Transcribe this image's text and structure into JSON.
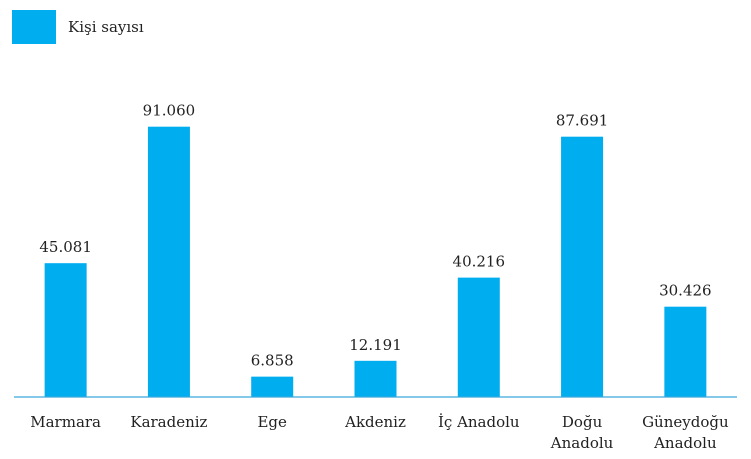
{
  "chart_data": {
    "type": "bar",
    "categories": [
      "Marmara",
      "Karadeniz",
      "Ege",
      "Akdeniz",
      "İç Anadolu",
      "Doğu Anadolu",
      "Güneydoğu Anadolu"
    ],
    "series": [
      {
        "name": "Kişi sayısı",
        "values": [
          45081,
          91060,
          6858,
          12191,
          40216,
          87691,
          30426
        ],
        "value_labels": [
          "45.081",
          "91.060",
          "6.858",
          "12.191",
          "40.216",
          "87.691",
          "30.426"
        ],
        "color": "#00adef"
      }
    ],
    "legend_position": "top-left",
    "grid": false,
    "ylim": [
      0,
      95000
    ],
    "axis_color": "#3aa9dc"
  }
}
